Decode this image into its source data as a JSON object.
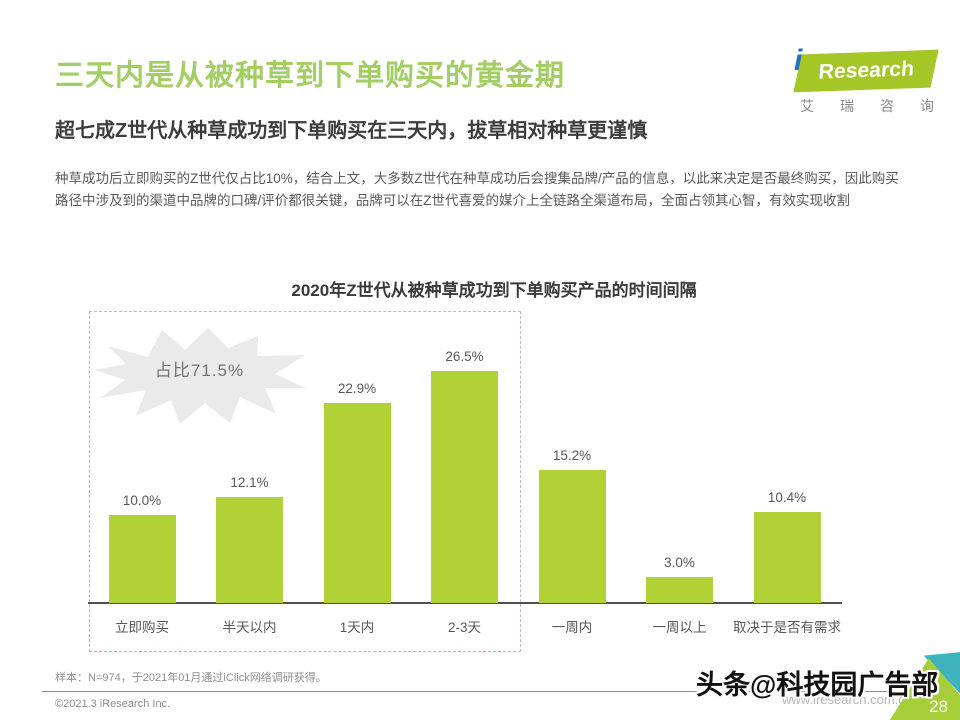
{
  "page": {
    "title": "三天内是从被种草到下单购买的黄金期",
    "subtitle": "超七成Z世代从种草成功到下单购买在三天内，拔草相对种草更谨慎",
    "body": "种草成功后立即购买的Z世代仅占比10%，结合上文，大多数Z世代在种草成功后会搜集品牌/产品的信息，以此来决定是否最终购买，因此购买路径中涉及到的渠道中品牌的口碑/评价都很关键，品牌可以在Z世代喜爱的媒介上全链路全渠道布局，全面占领其心智，有效实现收割"
  },
  "logo": {
    "brand_i": "i",
    "brand_name": "Research",
    "brand_cn": "艾瑞咨询"
  },
  "chart_data": {
    "type": "bar",
    "title": "2020年Z世代从被种草成功到下单购买产品的时间间隔",
    "categories": [
      "立即购买",
      "半天以内",
      "1天内",
      "2-3天",
      "一周内",
      "一周以上",
      "取决于是否有需求"
    ],
    "values": [
      10.0,
      12.1,
      22.9,
      26.5,
      15.2,
      3.0,
      10.4
    ],
    "value_labels": [
      "10.0%",
      "12.1%",
      "22.9%",
      "26.5%",
      "15.2%",
      "3.0%",
      "10.4%"
    ],
    "xlabel": "",
    "ylabel": "",
    "ylim": [
      0,
      30
    ],
    "grid": false,
    "legend": "none",
    "bar_color": "#b1d137",
    "annotation": {
      "label": "占比71.5%",
      "covers_categories": [
        "立即购买",
        "半天以内",
        "1天内",
        "2-3天"
      ]
    }
  },
  "footer": {
    "sample_note": "样本：N=974，于2021年01月通过iClick网络调研获得。",
    "copyright": "©2021.3 iResearch Inc.",
    "website": "www.iresearch.com.cn",
    "page_number": "28",
    "watermark": "头条@科技园广告部"
  },
  "colors": {
    "accent_green": "#a2ce64",
    "bar_green": "#b1d137",
    "corner_green": "#a6ce39",
    "corner_teal": "#3eb3bc",
    "logo_green": "#a4c626",
    "logo_blue": "#2a70b8",
    "highlight_dash": "#d4b0b0"
  }
}
